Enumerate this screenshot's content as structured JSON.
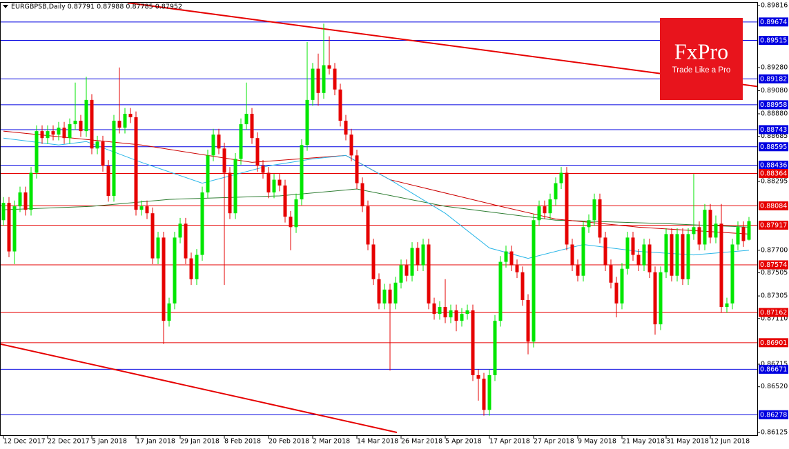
{
  "chart_data": {
    "type": "candlestick",
    "title": "EURGBPSB,Daily  0.87791 0.87988 0.87785 0.87952",
    "xlim": [
      -0.625,
      136.625
    ],
    "ylim": [
      0.86095,
      0.89846
    ],
    "xticks": [
      {
        "value": 0,
        "label": "12 Dec 2017"
      },
      {
        "value": 8,
        "label": "22 Dec 2017"
      },
      {
        "value": 16,
        "label": "5 Jan 2018"
      },
      {
        "value": 24,
        "label": "17 Jan 2018"
      },
      {
        "value": 32,
        "label": "29 Jan 2018"
      },
      {
        "value": 40,
        "label": "8 Feb 2018"
      },
      {
        "value": 48,
        "label": "20 Feb 2018"
      },
      {
        "value": 56,
        "label": "2 Mar 2018"
      },
      {
        "value": 64,
        "label": "14 Mar 2018"
      },
      {
        "value": 72,
        "label": "26 Mar 2018"
      },
      {
        "value": 80,
        "label": "5 Apr 2018"
      },
      {
        "value": 88,
        "label": "17 Apr 2018"
      },
      {
        "value": 96,
        "label": "27 Apr 2018"
      },
      {
        "value": 104,
        "label": "9 May 2018"
      },
      {
        "value": 112,
        "label": "21 May 2018"
      },
      {
        "value": 120,
        "label": "31 May 2018"
      },
      {
        "value": 128,
        "label": "12 Jun 2018"
      }
    ],
    "yticks": [
      0.89816,
      {
        "value": 0.8928,
        "label": "0.89280"
      },
      {
        "value": 0.8908,
        "label": "0.89080"
      },
      {
        "value": 0.8888,
        "label": "0.88880"
      },
      0.88685,
      0.88295,
      {
        "value": 0.877,
        "label": "0.87700"
      },
      0.87505,
      0.87305,
      {
        "value": 0.8711,
        "label": "0.87110"
      },
      0.86715,
      {
        "value": 0.8652,
        "label": "0.86520"
      },
      0.86125
    ],
    "bull_color": "#00e600",
    "bear_color": "#e60000",
    "ohlc": [
      [
        0.8796,
        0.8816,
        0.8791,
        0.8811
      ],
      [
        0.8811,
        0.8816,
        0.8764,
        0.8769
      ],
      [
        0.8769,
        0.8813,
        0.8758,
        0.8808
      ],
      [
        0.8808,
        0.8825,
        0.8803,
        0.882
      ],
      [
        0.882,
        0.8825,
        0.88,
        0.8805
      ],
      [
        0.8805,
        0.8842,
        0.88,
        0.8837
      ],
      [
        0.8837,
        0.8878,
        0.8832,
        0.8873
      ],
      [
        0.8873,
        0.8878,
        0.8862,
        0.8867
      ],
      [
        0.8867,
        0.8878,
        0.8862,
        0.8873
      ],
      [
        0.8873,
        0.8878,
        0.8865,
        0.887
      ],
      [
        0.887,
        0.8881,
        0.8865,
        0.8876
      ],
      [
        0.8876,
        0.8881,
        0.8862,
        0.8867
      ],
      [
        0.8867,
        0.8884,
        0.8862,
        0.8879
      ],
      [
        0.8879,
        0.8915,
        0.8874,
        0.8882
      ],
      [
        0.8882,
        0.8887,
        0.8868,
        0.8873
      ],
      [
        0.8873,
        0.892,
        0.8868,
        0.89
      ],
      [
        0.89,
        0.8905,
        0.8853,
        0.8858
      ],
      [
        0.8858,
        0.8869,
        0.8853,
        0.8864
      ],
      [
        0.8864,
        0.8869,
        0.8838,
        0.8843
      ],
      [
        0.8843,
        0.8848,
        0.8812,
        0.8817
      ],
      [
        0.8817,
        0.8887,
        0.8812,
        0.8882
      ],
      [
        0.8882,
        0.8928,
        0.8871,
        0.8876
      ],
      [
        0.8876,
        0.8893,
        0.8871,
        0.8888
      ],
      [
        0.8888,
        0.8893,
        0.888,
        0.8885
      ],
      [
        0.8885,
        0.889,
        0.88,
        0.8805
      ],
      [
        0.8805,
        0.8813,
        0.88,
        0.8808
      ],
      [
        0.8808,
        0.8813,
        0.8797,
        0.8802
      ],
      [
        0.8802,
        0.8807,
        0.8758,
        0.8763
      ],
      [
        0.8763,
        0.8786,
        0.8758,
        0.8781
      ],
      [
        0.8781,
        0.8786,
        0.8689,
        0.8709
      ],
      [
        0.8709,
        0.8729,
        0.8704,
        0.8724
      ],
      [
        0.8724,
        0.8786,
        0.8719,
        0.8781
      ],
      [
        0.8781,
        0.8798,
        0.8776,
        0.8793
      ],
      [
        0.8793,
        0.8798,
        0.8758,
        0.8763
      ],
      [
        0.8763,
        0.8768,
        0.874,
        0.8745
      ],
      [
        0.8745,
        0.8771,
        0.874,
        0.8766
      ],
      [
        0.8766,
        0.8825,
        0.8761,
        0.882
      ],
      [
        0.882,
        0.8857,
        0.8815,
        0.8852
      ],
      [
        0.8852,
        0.8875,
        0.8847,
        0.887
      ],
      [
        0.887,
        0.8875,
        0.8853,
        0.8858
      ],
      [
        0.8858,
        0.8863,
        0.874,
        0.8837
      ],
      [
        0.8837,
        0.8842,
        0.8797,
        0.8802
      ],
      [
        0.8802,
        0.8854,
        0.8797,
        0.8849
      ],
      [
        0.8849,
        0.8884,
        0.8844,
        0.8879
      ],
      [
        0.8879,
        0.8915,
        0.8874,
        0.8888
      ],
      [
        0.8888,
        0.8893,
        0.8862,
        0.8867
      ],
      [
        0.8867,
        0.8872,
        0.8838,
        0.8843
      ],
      [
        0.8843,
        0.8848,
        0.8832,
        0.8837
      ],
      [
        0.8837,
        0.8842,
        0.8815,
        0.882
      ],
      [
        0.882,
        0.8836,
        0.8815,
        0.8831
      ],
      [
        0.8831,
        0.8836,
        0.8821,
        0.8826
      ],
      [
        0.8826,
        0.8831,
        0.8794,
        0.8799
      ],
      [
        0.8799,
        0.8804,
        0.877,
        0.879
      ],
      [
        0.879,
        0.8819,
        0.8785,
        0.8814
      ],
      [
        0.8814,
        0.8866,
        0.8809,
        0.8861
      ],
      [
        0.8861,
        0.895,
        0.8856,
        0.89
      ],
      [
        0.89,
        0.8932,
        0.8895,
        0.8927
      ],
      [
        0.8927,
        0.894,
        0.8895,
        0.8906
      ],
      [
        0.8906,
        0.8966,
        0.8901,
        0.893
      ],
      [
        0.893,
        0.8955,
        0.8922,
        0.8927
      ],
      [
        0.8927,
        0.8932,
        0.8904,
        0.8909
      ],
      [
        0.8909,
        0.8914,
        0.8877,
        0.8882
      ],
      [
        0.8882,
        0.8887,
        0.8865,
        0.887
      ],
      [
        0.887,
        0.8875,
        0.8847,
        0.8852
      ],
      [
        0.8852,
        0.8857,
        0.8823,
        0.8828
      ],
      [
        0.8828,
        0.8833,
        0.8803,
        0.8808
      ],
      [
        0.8808,
        0.8813,
        0.877,
        0.8775
      ],
      [
        0.8775,
        0.878,
        0.874,
        0.8745
      ],
      [
        0.8745,
        0.875,
        0.8719,
        0.8724
      ],
      [
        0.8724,
        0.8741,
        0.8719,
        0.8736
      ],
      [
        0.8736,
        0.8741,
        0.8666,
        0.8724
      ],
      [
        0.8724,
        0.8747,
        0.8719,
        0.8742
      ],
      [
        0.8742,
        0.8762,
        0.8737,
        0.8757
      ],
      [
        0.8757,
        0.8762,
        0.8743,
        0.8748
      ],
      [
        0.8748,
        0.8777,
        0.8743,
        0.8772
      ],
      [
        0.8772,
        0.8777,
        0.8752,
        0.8757
      ],
      [
        0.8757,
        0.878,
        0.8752,
        0.8775
      ],
      [
        0.8775,
        0.878,
        0.8719,
        0.8724
      ],
      [
        0.8724,
        0.8729,
        0.871,
        0.8715
      ],
      [
        0.8715,
        0.8726,
        0.871,
        0.8721
      ],
      [
        0.8721,
        0.8745,
        0.8707,
        0.8712
      ],
      [
        0.8712,
        0.8723,
        0.8707,
        0.8718
      ],
      [
        0.8718,
        0.8723,
        0.87,
        0.8709
      ],
      [
        0.8709,
        0.872,
        0.8704,
        0.8715
      ],
      [
        0.8715,
        0.8723,
        0.871,
        0.8718
      ],
      [
        0.8718,
        0.8723,
        0.8657,
        0.8662
      ],
      [
        0.8662,
        0.8667,
        0.864,
        0.8659
      ],
      [
        0.8659,
        0.8664,
        0.8627,
        0.8632
      ],
      [
        0.8632,
        0.8667,
        0.8627,
        0.8662
      ],
      [
        0.8662,
        0.8714,
        0.8657,
        0.8709
      ],
      [
        0.8709,
        0.8765,
        0.8704,
        0.876
      ],
      [
        0.876,
        0.8774,
        0.8755,
        0.8769
      ],
      [
        0.8769,
        0.8774,
        0.8752,
        0.8757
      ],
      [
        0.8757,
        0.8762,
        0.8746,
        0.8751
      ],
      [
        0.8751,
        0.8756,
        0.8722,
        0.8727
      ],
      [
        0.8727,
        0.8732,
        0.868,
        0.8691
      ],
      [
        0.8691,
        0.8801,
        0.8686,
        0.8796
      ],
      [
        0.8796,
        0.8813,
        0.8791,
        0.8808
      ],
      [
        0.8808,
        0.8813,
        0.8797,
        0.8802
      ],
      [
        0.8802,
        0.8819,
        0.8797,
        0.8814
      ],
      [
        0.8814,
        0.8833,
        0.8809,
        0.8828
      ],
      [
        0.8828,
        0.8842,
        0.8823,
        0.8837
      ],
      [
        0.8837,
        0.8842,
        0.877,
        0.8775
      ],
      [
        0.8775,
        0.878,
        0.8752,
        0.8757
      ],
      [
        0.8757,
        0.8762,
        0.8743,
        0.8748
      ],
      [
        0.8748,
        0.8795,
        0.8743,
        0.879
      ],
      [
        0.879,
        0.8801,
        0.8785,
        0.8796
      ],
      [
        0.8796,
        0.8819,
        0.8791,
        0.8814
      ],
      [
        0.8814,
        0.8819,
        0.8776,
        0.8781
      ],
      [
        0.8781,
        0.8786,
        0.8752,
        0.8757
      ],
      [
        0.8757,
        0.8762,
        0.8737,
        0.8742
      ],
      [
        0.8742,
        0.8747,
        0.8712,
        0.8724
      ],
      [
        0.8724,
        0.8759,
        0.8719,
        0.8754
      ],
      [
        0.8754,
        0.8786,
        0.8749,
        0.8781
      ],
      [
        0.8781,
        0.8786,
        0.8761,
        0.8766
      ],
      [
        0.8766,
        0.8771,
        0.8752,
        0.8757
      ],
      [
        0.8757,
        0.878,
        0.8752,
        0.8775
      ],
      [
        0.8775,
        0.878,
        0.8746,
        0.8751
      ],
      [
        0.8751,
        0.8756,
        0.8697,
        0.8706
      ],
      [
        0.8706,
        0.8756,
        0.8701,
        0.8751
      ],
      [
        0.8751,
        0.8789,
        0.8746,
        0.8784
      ],
      [
        0.8784,
        0.8789,
        0.8743,
        0.8748
      ],
      [
        0.8748,
        0.8789,
        0.8743,
        0.8784
      ],
      [
        0.8784,
        0.8789,
        0.874,
        0.8745
      ],
      [
        0.8745,
        0.8789,
        0.874,
        0.8784
      ],
      [
        0.8784,
        0.8836,
        0.8779,
        0.879
      ],
      [
        0.879,
        0.8795,
        0.877,
        0.8775
      ],
      [
        0.8775,
        0.881,
        0.877,
        0.8805
      ],
      [
        0.8805,
        0.881,
        0.8776,
        0.8781
      ],
      [
        0.8781,
        0.88,
        0.8776,
        0.8793
      ],
      [
        0.8793,
        0.881,
        0.8716,
        0.8721
      ],
      [
        0.8721,
        0.8729,
        0.8716,
        0.8724
      ],
      [
        0.8724,
        0.878,
        0.8719,
        0.8775
      ],
      [
        0.8775,
        0.8795,
        0.877,
        0.879
      ],
      [
        0.879,
        0.8795,
        0.8773,
        0.8778
      ],
      [
        0.87791,
        0.87988,
        0.87785,
        0.87952
      ]
    ],
    "moving_averages": [
      {
        "color": "#2e7d32",
        "x": [
          0,
          16,
          30,
          50,
          64,
          80,
          100,
          120,
          135
        ],
        "values": [
          0.8805,
          0.8808,
          0.8814,
          0.8817,
          0.8823,
          0.8808,
          0.8796,
          0.8793,
          0.879
        ]
      },
      {
        "color": "#cc0000",
        "x": [
          0,
          25,
          45,
          62,
          70,
          90,
          100,
          115,
          125,
          135
        ],
        "values": [
          0.8873,
          0.8861,
          0.8846,
          0.8852,
          0.8831,
          0.8808,
          0.8797,
          0.879,
          0.8787,
          0.8784
        ]
      },
      {
        "color": "#29b6e8",
        "x": [
          0,
          10,
          15,
          25,
          36,
          48,
          56,
          62,
          70,
          80,
          88,
          95,
          105,
          115,
          125,
          135
        ],
        "values": [
          0.8867,
          0.8861,
          0.8864,
          0.8846,
          0.8828,
          0.8843,
          0.8849,
          0.8852,
          0.8831,
          0.8802,
          0.8772,
          0.8763,
          0.8775,
          0.8769,
          0.8766,
          0.877
        ]
      }
    ],
    "trendlines": [
      {
        "color": "#e60000",
        "x": [
          22.5,
          142.25
        ],
        "values": [
          0.8984,
          0.8908
        ]
      },
      {
        "color": "#e60000",
        "x": [
          -0.625,
          71.25
        ],
        "values": [
          0.8689,
          0.86125
        ]
      }
    ],
    "levels": [
      {
        "value": 0.89674,
        "color": "#0000e0"
      },
      {
        "value": 0.89515,
        "color": "#0000e0"
      },
      {
        "value": 0.89182,
        "color": "#0000e0"
      },
      {
        "value": 0.88958,
        "color": "#0000e0"
      },
      {
        "value": 0.88743,
        "color": "#0000e0"
      },
      {
        "value": 0.88595,
        "color": "#0000e0"
      },
      {
        "value": 0.88436,
        "color": "#0000e0"
      },
      {
        "value": 0.88364,
        "color": "#e60000"
      },
      {
        "value": 0.88084,
        "color": "#e60000"
      },
      {
        "value": 0.87917,
        "color": "#e60000"
      },
      {
        "value": 0.87574,
        "color": "#e60000"
      },
      {
        "value": 0.87162,
        "color": "#e60000"
      },
      {
        "value": 0.86901,
        "color": "#e60000"
      },
      {
        "value": 0.86671,
        "color": "#0000e0"
      },
      {
        "value": 0.86278,
        "color": "#0000e0"
      }
    ],
    "watermark": {
      "brand": "FxPro",
      "tagline": "Trade Like a Pro",
      "color": "#e8141c"
    }
  }
}
